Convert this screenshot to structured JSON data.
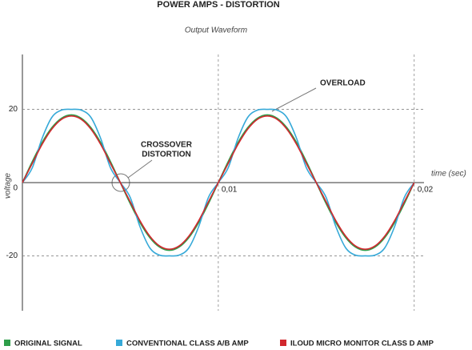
{
  "chart_data": {
    "type": "line",
    "title": "POWER AMPS - DISTORTION",
    "subtitle": "Output Waveform",
    "x_label": "time (sec)",
    "y_label": "voltage",
    "x": [
      0,
      0.0005,
      0.001,
      0.0015,
      0.002,
      0.0025,
      0.003,
      0.0035,
      0.004,
      0.0045,
      0.005,
      0.0055,
      0.006,
      0.0065,
      0.007,
      0.0075,
      0.008,
      0.0085,
      0.009,
      0.0095,
      0.01,
      0.0105,
      0.011,
      0.0115,
      0.012,
      0.0125,
      0.013,
      0.0135,
      0.014,
      0.0145,
      0.015,
      0.0155,
      0.016,
      0.0165,
      0.017,
      0.0175,
      0.018,
      0.0185,
      0.019,
      0.0195,
      0.02
    ],
    "series": [
      {
        "name": "ORIGINAL SIGNAL",
        "color": "#2e9e4a",
        "values": [
          0,
          5.7,
          10.9,
          15.0,
          17.6,
          18.5,
          17.6,
          15.0,
          10.9,
          5.7,
          0,
          -5.7,
          -10.9,
          -15.0,
          -17.6,
          -18.5,
          -17.6,
          -15.0,
          -10.9,
          -5.7,
          0,
          5.7,
          10.9,
          15.0,
          17.6,
          18.5,
          17.6,
          15.0,
          10.9,
          5.7,
          0,
          -5.7,
          -10.9,
          -15.0,
          -17.6,
          -18.5,
          -17.6,
          -15.0,
          -10.9,
          -5.7,
          0
        ]
      },
      {
        "name": "CONVENTIONAL CLASS A/B AMP",
        "color": "#36a9d8",
        "values": [
          0,
          4.0,
          12.0,
          17.8,
          19.8,
          20,
          19.8,
          17.8,
          12.0,
          4.0,
          0,
          -4.0,
          -12.0,
          -17.8,
          -19.8,
          -20,
          -19.8,
          -17.8,
          -12.0,
          -4.0,
          0,
          4.0,
          12.0,
          17.8,
          19.8,
          20,
          19.8,
          17.8,
          12.0,
          4.0,
          0,
          -4.0,
          -12.0,
          -17.8,
          -19.8,
          -20,
          -19.8,
          -17.8,
          -12.0,
          -4.0,
          0
        ]
      },
      {
        "name": "ILOUD MICRO MONITOR CLASS D AMP",
        "color": "#d1282e",
        "values": [
          0,
          5.2,
          10.4,
          14.6,
          17.3,
          18.2,
          17.3,
          14.6,
          10.4,
          5.2,
          0,
          -5.2,
          -10.4,
          -14.6,
          -17.3,
          -18.2,
          -17.3,
          -14.6,
          -10.4,
          -5.2,
          0,
          5.2,
          10.4,
          14.6,
          17.3,
          18.2,
          17.3,
          14.6,
          10.4,
          5.2,
          0,
          -5.2,
          -10.4,
          -14.6,
          -17.3,
          -18.2,
          -17.3,
          -14.6,
          -10.4,
          -5.2,
          0
        ]
      }
    ],
    "xlim": [
      0,
      0.0205
    ],
    "ylim": [
      -35,
      35
    ],
    "xticks": [
      {
        "value": 0.01,
        "label": "0,01"
      },
      {
        "value": 0.02,
        "label": "0,02"
      }
    ],
    "yticks": [
      20,
      0,
      -20
    ],
    "grid": true,
    "legend": "bottom",
    "annotations": [
      {
        "text": [
          "OVERLOAD"
        ]
      },
      {
        "text": [
          "CROSSOVER",
          "DISTORTION"
        ]
      }
    ]
  }
}
